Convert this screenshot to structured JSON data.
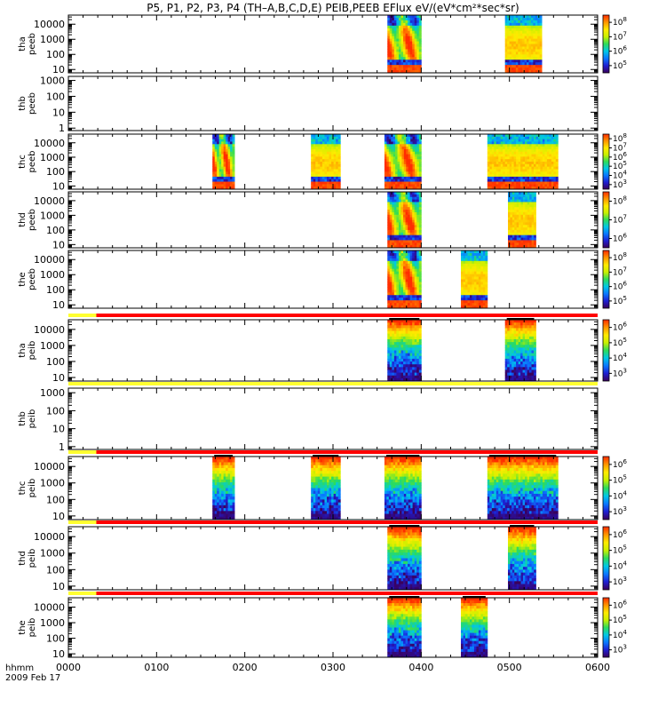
{
  "title": "P5, P1, P2, P3, P4 (TH–A,B,C,D,E) PEIB,PEEB EFlux eV/(eV*cm²*sec*sr)",
  "footer": {
    "label": "hhmm",
    "date": "2009 Feb 17"
  },
  "colormap": [
    "#3a005a",
    "#1e1ed2",
    "#0a78ff",
    "#00c8e6",
    "#2ddc5a",
    "#c8f000",
    "#ffeb00",
    "#ff9600",
    "#ff2d00"
  ],
  "status_colors": {
    "yellow": "#ffff30",
    "red": "#ff0000",
    "black": "#000000"
  },
  "chart_data": {
    "type": "heatmap",
    "x_axis": {
      "ticks": [
        "0000",
        "0100",
        "0200",
        "0300",
        "0400",
        "0500",
        "0600"
      ],
      "xlim": [
        "00:00",
        "06:00"
      ]
    },
    "panels": [
      {
        "id": "tha_peeb",
        "label1": "tha",
        "label2": "peeb",
        "yscale": "log",
        "ylim": [
          6,
          40000
        ],
        "ytick_labels": [
          "10",
          "100",
          "1000",
          "10000"
        ],
        "ytick_values": [
          10,
          100,
          1000,
          10000
        ],
        "colorbar": {
          "scale": "log",
          "ticks": [
            {
              "mantissa": "10",
              "exp": "5"
            },
            {
              "mantissa": "10",
              "exp": "6"
            },
            {
              "mantissa": "10",
              "exp": "7"
            },
            {
              "mantissa": "10",
              "exp": "8"
            }
          ]
        },
        "data_blocks": [
          {
            "start": "03:37",
            "end": "04:00",
            "profile": "electron",
            "disturbed": true
          },
          {
            "start": "04:57",
            "end": "05:22",
            "profile": "electron"
          }
        ]
      },
      {
        "id": "thb_peeb",
        "label1": "thb",
        "label2": "peeb",
        "yscale": "log",
        "ylim": [
          0.7,
          1800
        ],
        "ytick_labels": [
          "1",
          "10",
          "100",
          "1000"
        ],
        "ytick_values": [
          1,
          10,
          100,
          1000
        ],
        "colorbar": null,
        "data_blocks": []
      },
      {
        "id": "thc_peeb",
        "label1": "thc",
        "label2": "peeb",
        "yscale": "log",
        "ylim": [
          6,
          40000
        ],
        "ytick_labels": [
          "10",
          "100",
          "1000",
          "10000"
        ],
        "ytick_values": [
          10,
          100,
          1000,
          10000
        ],
        "colorbar": {
          "scale": "log",
          "ticks": [
            {
              "mantissa": "10",
              "exp": "3"
            },
            {
              "mantissa": "10",
              "exp": "4"
            },
            {
              "mantissa": "10",
              "exp": "5"
            },
            {
              "mantissa": "10",
              "exp": "6"
            },
            {
              "mantissa": "10",
              "exp": "7"
            },
            {
              "mantissa": "10",
              "exp": "8"
            }
          ]
        },
        "data_blocks": [
          {
            "start": "01:38",
            "end": "01:53",
            "profile": "electron",
            "disturbed": true
          },
          {
            "start": "02:45",
            "end": "03:05",
            "profile": "electron"
          },
          {
            "start": "03:35",
            "end": "04:00",
            "profile": "electron",
            "disturbed": true
          },
          {
            "start": "04:45",
            "end": "05:33",
            "profile": "electron"
          }
        ]
      },
      {
        "id": "thd_peeb",
        "label1": "thd",
        "label2": "peeb",
        "yscale": "log",
        "ylim": [
          6,
          40000
        ],
        "ytick_labels": [
          "10",
          "100",
          "1000",
          "10000"
        ],
        "ytick_values": [
          10,
          100,
          1000,
          10000
        ],
        "colorbar": {
          "scale": "log",
          "ticks": [
            {
              "mantissa": "10",
              "exp": "6"
            },
            {
              "mantissa": "10",
              "exp": "7"
            },
            {
              "mantissa": "10",
              "exp": "8"
            }
          ]
        },
        "data_blocks": [
          {
            "start": "03:37",
            "end": "04:00",
            "profile": "electron",
            "disturbed": true
          },
          {
            "start": "04:59",
            "end": "05:18",
            "profile": "electron"
          }
        ]
      },
      {
        "id": "the_peeb",
        "label1": "the",
        "label2": "peeb",
        "yscale": "log",
        "ylim": [
          6,
          40000
        ],
        "ytick_labels": [
          "10",
          "100",
          "1000",
          "10000"
        ],
        "ytick_values": [
          10,
          100,
          1000,
          10000
        ],
        "colorbar": {
          "scale": "log",
          "ticks": [
            {
              "mantissa": "10",
              "exp": "5"
            },
            {
              "mantissa": "10",
              "exp": "6"
            },
            {
              "mantissa": "10",
              "exp": "7"
            },
            {
              "mantissa": "10",
              "exp": "8"
            }
          ]
        },
        "data_blocks": [
          {
            "start": "03:37",
            "end": "04:00",
            "profile": "electron",
            "disturbed": true
          },
          {
            "start": "04:27",
            "end": "04:45",
            "profile": "electron"
          }
        ]
      },
      {
        "id": "tha_peib",
        "label1": "tha",
        "label2": "peib",
        "yscale": "log",
        "ylim": [
          6,
          40000
        ],
        "ytick_labels": [
          "10",
          "100",
          "1000",
          "10000"
        ],
        "ytick_values": [
          10,
          100,
          1000,
          10000
        ],
        "colorbar": {
          "scale": "log",
          "ticks": [
            {
              "mantissa": "10",
              "exp": "3"
            },
            {
              "mantissa": "10",
              "exp": "4"
            },
            {
              "mantissa": "10",
              "exp": "5"
            },
            {
              "mantissa": "10",
              "exp": "6"
            }
          ]
        },
        "status_bar": [
          {
            "start": "00:00",
            "end": "00:19",
            "color": "yellow"
          },
          {
            "start": "00:19",
            "end": "06:00",
            "color": "red"
          }
        ],
        "data_blocks": [
          {
            "start": "03:37",
            "end": "04:00",
            "profile": "ion"
          },
          {
            "start": "04:57",
            "end": "05:18",
            "profile": "ion"
          }
        ]
      },
      {
        "id": "thb_peib",
        "label1": "thb",
        "label2": "peib",
        "yscale": "log",
        "ylim": [
          0.7,
          1800
        ],
        "ytick_labels": [
          "1",
          "10",
          "100",
          "1000"
        ],
        "ytick_values": [
          1,
          10,
          100,
          1000
        ],
        "colorbar": null,
        "status_bar": [
          {
            "start": "00:00",
            "end": "06:00",
            "color": "yellow"
          }
        ],
        "data_blocks": []
      },
      {
        "id": "thc_peib",
        "label1": "thc",
        "label2": "peib",
        "yscale": "log",
        "ylim": [
          6,
          40000
        ],
        "ytick_labels": [
          "10",
          "100",
          "1000",
          "10000"
        ],
        "ytick_values": [
          10,
          100,
          1000,
          10000
        ],
        "colorbar": {
          "scale": "log",
          "ticks": [
            {
              "mantissa": "10",
              "exp": "3"
            },
            {
              "mantissa": "10",
              "exp": "4"
            },
            {
              "mantissa": "10",
              "exp": "5"
            },
            {
              "mantissa": "10",
              "exp": "6"
            }
          ]
        },
        "status_bar": [
          {
            "start": "00:00",
            "end": "00:19",
            "color": "yellow"
          },
          {
            "start": "00:19",
            "end": "06:00",
            "color": "red"
          }
        ],
        "data_blocks": [
          {
            "start": "01:38",
            "end": "01:53",
            "profile": "ion"
          },
          {
            "start": "02:45",
            "end": "03:05",
            "profile": "ion"
          },
          {
            "start": "03:35",
            "end": "04:00",
            "profile": "ion"
          },
          {
            "start": "04:45",
            "end": "05:33",
            "profile": "ion"
          }
        ]
      },
      {
        "id": "thd_peib",
        "label1": "thd",
        "label2": "peib",
        "yscale": "log",
        "ylim": [
          6,
          40000
        ],
        "ytick_labels": [
          "10",
          "100",
          "1000",
          "10000"
        ],
        "ytick_values": [
          10,
          100,
          1000,
          10000
        ],
        "colorbar": {
          "scale": "log",
          "ticks": [
            {
              "mantissa": "10",
              "exp": "3"
            },
            {
              "mantissa": "10",
              "exp": "4"
            },
            {
              "mantissa": "10",
              "exp": "5"
            },
            {
              "mantissa": "10",
              "exp": "6"
            }
          ]
        },
        "status_bar": [
          {
            "start": "00:00",
            "end": "00:19",
            "color": "yellow"
          },
          {
            "start": "00:19",
            "end": "06:00",
            "color": "red"
          }
        ],
        "data_blocks": [
          {
            "start": "03:37",
            "end": "04:00",
            "profile": "ion"
          },
          {
            "start": "04:59",
            "end": "05:18",
            "profile": "ion"
          }
        ]
      },
      {
        "id": "the_peib",
        "label1": "the",
        "label2": "peib",
        "yscale": "log",
        "ylim": [
          6,
          40000
        ],
        "ytick_labels": [
          "10",
          "100",
          "1000",
          "10000"
        ],
        "ytick_values": [
          10,
          100,
          1000,
          10000
        ],
        "colorbar": {
          "scale": "log",
          "ticks": [
            {
              "mantissa": "10",
              "exp": "3"
            },
            {
              "mantissa": "10",
              "exp": "4"
            },
            {
              "mantissa": "10",
              "exp": "5"
            },
            {
              "mantissa": "10",
              "exp": "6"
            }
          ]
        },
        "status_bar": [
          {
            "start": "00:00",
            "end": "00:19",
            "color": "yellow"
          },
          {
            "start": "00:19",
            "end": "06:00",
            "color": "red"
          }
        ],
        "data_blocks": [
          {
            "start": "03:37",
            "end": "04:00",
            "profile": "ion"
          },
          {
            "start": "04:27",
            "end": "04:45",
            "profile": "ion"
          }
        ]
      }
    ]
  }
}
